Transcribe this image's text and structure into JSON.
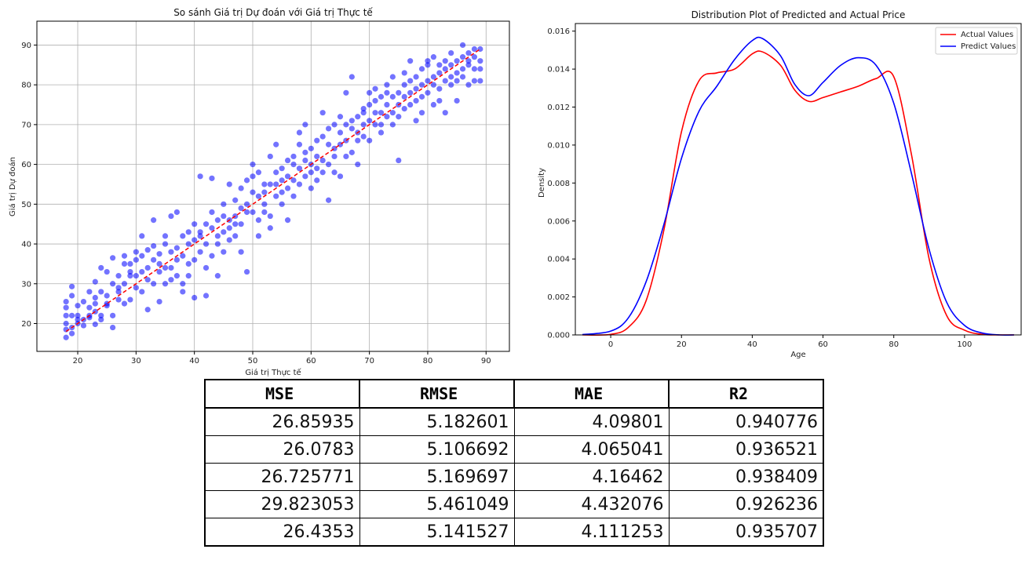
{
  "chart_data": [
    {
      "type": "scatter",
      "title": "So sánh Giá trị Dự đoán với Giá trị Thực tế",
      "xlabel": "Giá trị Thực tế",
      "ylabel": "Giá trị Dự đoán",
      "xlim": [
        13,
        94
      ],
      "ylim": [
        13,
        96
      ],
      "xticks": [
        20,
        30,
        40,
        50,
        60,
        70,
        80,
        90
      ],
      "yticks": [
        20,
        30,
        40,
        50,
        60,
        70,
        80,
        90
      ],
      "grid": true,
      "point_color": "#0000ff",
      "reference_line": {
        "color": "#ff0000",
        "style": "dashed",
        "from": [
          18,
          18
        ],
        "to": [
          89,
          89
        ]
      },
      "points": [
        [
          18,
          25.5
        ],
        [
          18,
          24
        ],
        [
          18,
          22
        ],
        [
          18,
          20
        ],
        [
          18,
          18.5
        ],
        [
          18,
          16.5
        ],
        [
          19,
          29.3
        ],
        [
          19,
          27
        ],
        [
          19,
          19
        ],
        [
          19,
          17.5
        ],
        [
          19,
          22
        ],
        [
          20,
          20
        ],
        [
          20,
          22
        ],
        [
          20,
          24.5
        ],
        [
          20,
          21
        ],
        [
          21,
          19.5
        ],
        [
          21,
          21
        ],
        [
          21,
          25.5
        ],
        [
          22,
          22
        ],
        [
          22,
          28
        ],
        [
          22,
          21.5
        ],
        [
          22,
          24
        ],
        [
          23,
          23
        ],
        [
          23,
          25
        ],
        [
          23,
          30.5
        ],
        [
          23,
          19.8
        ],
        [
          23,
          26.5
        ],
        [
          24,
          34
        ],
        [
          24,
          22
        ],
        [
          24,
          21
        ],
        [
          24,
          28
        ],
        [
          25,
          24.5
        ],
        [
          25,
          33
        ],
        [
          25,
          27
        ],
        [
          25,
          25
        ],
        [
          26,
          30
        ],
        [
          26,
          36.5
        ],
        [
          26,
          22
        ],
        [
          26,
          19
        ],
        [
          27,
          26
        ],
        [
          27,
          28
        ],
        [
          27,
          32
        ],
        [
          27,
          29
        ],
        [
          28,
          37
        ],
        [
          28,
          35
        ],
        [
          28,
          30
        ],
        [
          28,
          25
        ],
        [
          29,
          32
        ],
        [
          29,
          26
        ],
        [
          29,
          33
        ],
        [
          29,
          35
        ],
        [
          30,
          38
        ],
        [
          30,
          29
        ],
        [
          30,
          36
        ],
        [
          30,
          32
        ],
        [
          31,
          42
        ],
        [
          31,
          33
        ],
        [
          31,
          28
        ],
        [
          31,
          37
        ],
        [
          32,
          34
        ],
        [
          32,
          38.5
        ],
        [
          32,
          23.5
        ],
        [
          32,
          31
        ],
        [
          33,
          39.5
        ],
        [
          33,
          30
        ],
        [
          33,
          36
        ],
        [
          33,
          46
        ],
        [
          34,
          37.5
        ],
        [
          34,
          35
        ],
        [
          34,
          33
        ],
        [
          34,
          25.5
        ],
        [
          35,
          42
        ],
        [
          35,
          34
        ],
        [
          35,
          30
        ],
        [
          35,
          40
        ],
        [
          36,
          47
        ],
        [
          36,
          34
        ],
        [
          36,
          38
        ],
        [
          36,
          31
        ],
        [
          37,
          39
        ],
        [
          37,
          36
        ],
        [
          37,
          32
        ],
        [
          37,
          48
        ],
        [
          38,
          42
        ],
        [
          38,
          30
        ],
        [
          38,
          37
        ],
        [
          38,
          28
        ],
        [
          39,
          43
        ],
        [
          39,
          35
        ],
        [
          39,
          40
        ],
        [
          39,
          32
        ],
        [
          40,
          41
        ],
        [
          40,
          36
        ],
        [
          40,
          26.5
        ],
        [
          40,
          45
        ],
        [
          41,
          43
        ],
        [
          41,
          38
        ],
        [
          41,
          57
        ],
        [
          41,
          42
        ],
        [
          42,
          45
        ],
        [
          42,
          34
        ],
        [
          42,
          27
        ],
        [
          42,
          40
        ],
        [
          43,
          44
        ],
        [
          43,
          48
        ],
        [
          43,
          56.5
        ],
        [
          43,
          37
        ],
        [
          44,
          42
        ],
        [
          44,
          46
        ],
        [
          44,
          40
        ],
        [
          44,
          32
        ],
        [
          45,
          50
        ],
        [
          45,
          43
        ],
        [
          45,
          38
        ],
        [
          45,
          47
        ],
        [
          46,
          44
        ],
        [
          46,
          46
        ],
        [
          46,
          41
        ],
        [
          46,
          55
        ],
        [
          47,
          47
        ],
        [
          47,
          45
        ],
        [
          47,
          51
        ],
        [
          47,
          42
        ],
        [
          48,
          49
        ],
        [
          48,
          54
        ],
        [
          48,
          38
        ],
        [
          48,
          45
        ],
        [
          49,
          50
        ],
        [
          49,
          56
        ],
        [
          49,
          33
        ],
        [
          49,
          48
        ],
        [
          50,
          48
        ],
        [
          50,
          53
        ],
        [
          50,
          57
        ],
        [
          50,
          60
        ],
        [
          51,
          46
        ],
        [
          51,
          52
        ],
        [
          51,
          58
        ],
        [
          51,
          42
        ],
        [
          52,
          53
        ],
        [
          52,
          50
        ],
        [
          52,
          55
        ],
        [
          52,
          48
        ],
        [
          53,
          47
        ],
        [
          53,
          55
        ],
        [
          53,
          62
        ],
        [
          53,
          44
        ],
        [
          54,
          58
        ],
        [
          54,
          52
        ],
        [
          54,
          55
        ],
        [
          54,
          65
        ],
        [
          55,
          59
        ],
        [
          55,
          53
        ],
        [
          55,
          50
        ],
        [
          55,
          56
        ],
        [
          56,
          57
        ],
        [
          56,
          54
        ],
        [
          56,
          61
        ],
        [
          56,
          46
        ],
        [
          57,
          60
        ],
        [
          57,
          62
        ],
        [
          57,
          52
        ],
        [
          57,
          56
        ],
        [
          58,
          59
        ],
        [
          58,
          65
        ],
        [
          58,
          55
        ],
        [
          58,
          68
        ],
        [
          59,
          61
        ],
        [
          59,
          57
        ],
        [
          59,
          63
        ],
        [
          59,
          70
        ],
        [
          60,
          60
        ],
        [
          60,
          54
        ],
        [
          60,
          64
        ],
        [
          60,
          58
        ],
        [
          61,
          62
        ],
        [
          61,
          66
        ],
        [
          61,
          59
        ],
        [
          61,
          56
        ],
        [
          62,
          61
        ],
        [
          62,
          67
        ],
        [
          62,
          58
        ],
        [
          62,
          73
        ],
        [
          63,
          65
        ],
        [
          63,
          69
        ],
        [
          63,
          51
        ],
        [
          63,
          60
        ],
        [
          64,
          64
        ],
        [
          64,
          70
        ],
        [
          64,
          62
        ],
        [
          64,
          58
        ],
        [
          65,
          65
        ],
        [
          65,
          68
        ],
        [
          65,
          72
        ],
        [
          65,
          57
        ],
        [
          66,
          66
        ],
        [
          66,
          78
        ],
        [
          66,
          62
        ],
        [
          66,
          70
        ],
        [
          67,
          69
        ],
        [
          67,
          71
        ],
        [
          67,
          63
        ],
        [
          67,
          82
        ],
        [
          68,
          68
        ],
        [
          68,
          72
        ],
        [
          68,
          60
        ],
        [
          68,
          66
        ],
        [
          69,
          70
        ],
        [
          69,
          74
        ],
        [
          69,
          67
        ],
        [
          69,
          73
        ],
        [
          70,
          71
        ],
        [
          70,
          78
        ],
        [
          70,
          66
        ],
        [
          70,
          75
        ],
        [
          71,
          73
        ],
        [
          71,
          76
        ],
        [
          71,
          70
        ],
        [
          71,
          79
        ],
        [
          72,
          73
        ],
        [
          72,
          70
        ],
        [
          72,
          77
        ],
        [
          72,
          68
        ],
        [
          73,
          75
        ],
        [
          73,
          72
        ],
        [
          73,
          80
        ],
        [
          73,
          78
        ],
        [
          74,
          73
        ],
        [
          74,
          77
        ],
        [
          74,
          70
        ],
        [
          74,
          82
        ],
        [
          75,
          75
        ],
        [
          75,
          61
        ],
        [
          75,
          78
        ],
        [
          75,
          72
        ],
        [
          76,
          77
        ],
        [
          76,
          80
        ],
        [
          76,
          83
        ],
        [
          76,
          74
        ],
        [
          77,
          78
        ],
        [
          77,
          75
        ],
        [
          77,
          81
        ],
        [
          77,
          86
        ],
        [
          78,
          79
        ],
        [
          78,
          82
        ],
        [
          78,
          71
        ],
        [
          78,
          76
        ],
        [
          79,
          80
        ],
        [
          79,
          84
        ],
        [
          79,
          77
        ],
        [
          79,
          73
        ],
        [
          80,
          81
        ],
        [
          80,
          78
        ],
        [
          80,
          86
        ],
        [
          80,
          85
        ],
        [
          81,
          82
        ],
        [
          81,
          80
        ],
        [
          81,
          75
        ],
        [
          81,
          87
        ],
        [
          82,
          83
        ],
        [
          82,
          79
        ],
        [
          82,
          76
        ],
        [
          82,
          85
        ],
        [
          83,
          84
        ],
        [
          83,
          81
        ],
        [
          83,
          73
        ],
        [
          83,
          86
        ],
        [
          84,
          85
        ],
        [
          84,
          82
        ],
        [
          84,
          88
        ],
        [
          84,
          80
        ],
        [
          85,
          86
        ],
        [
          85,
          83
        ],
        [
          85,
          81
        ],
        [
          85,
          76
        ],
        [
          86,
          87
        ],
        [
          86,
          90
        ],
        [
          86,
          84
        ],
        [
          86,
          82
        ],
        [
          87,
          88
        ],
        [
          87,
          85
        ],
        [
          87,
          80
        ],
        [
          87,
          86
        ],
        [
          88,
          87
        ],
        [
          88,
          89
        ],
        [
          88,
          84
        ],
        [
          88,
          81
        ],
        [
          89,
          89
        ],
        [
          89,
          86
        ],
        [
          89,
          84
        ],
        [
          89,
          81
        ]
      ]
    },
    {
      "type": "line",
      "title": "Distribution Plot of Predicted and Actual Price",
      "xlabel": "Age",
      "ylabel": "Density",
      "xlim": [
        -10,
        116
      ],
      "ylim": [
        0,
        0.0164
      ],
      "xticks": [
        0,
        20,
        40,
        60,
        80,
        100
      ],
      "yticks": [
        0.0,
        0.002,
        0.004,
        0.006,
        0.008,
        0.01,
        0.012,
        0.014,
        0.016
      ],
      "ytick_labels": [
        "0.000",
        "0.002",
        "0.004",
        "0.006",
        "0.008",
        "0.010",
        "0.012",
        "0.014",
        "0.016"
      ],
      "legend_position": "top-right",
      "series": [
        {
          "name": "Actual Values",
          "color": "#ff0000",
          "x": [
            -8,
            0,
            5,
            10,
            15,
            20,
            25,
            30,
            35,
            40,
            43,
            48,
            52,
            56,
            60,
            65,
            70,
            75,
            80,
            85,
            90,
            95,
            100,
            105,
            110,
            114
          ],
          "y": [
            0.0,
            3e-05,
            0.0004,
            0.0018,
            0.0055,
            0.0107,
            0.0134,
            0.0138,
            0.014,
            0.0148,
            0.0149,
            0.0142,
            0.0129,
            0.0123,
            0.0125,
            0.0128,
            0.0131,
            0.0135,
            0.0136,
            0.0095,
            0.004,
            0.001,
            0.00025,
            3e-05,
            0.0,
            0.0
          ]
        },
        {
          "name": "Predict Values",
          "color": "#0000ff",
          "x": [
            -8,
            0,
            5,
            10,
            15,
            20,
            25,
            30,
            35,
            40,
            43,
            48,
            52,
            56,
            60,
            65,
            70,
            75,
            80,
            85,
            90,
            95,
            100,
            105,
            110,
            114
          ],
          "y": [
            2e-05,
            0.0002,
            0.0009,
            0.0028,
            0.0058,
            0.0093,
            0.0118,
            0.0131,
            0.0145,
            0.0155,
            0.0156,
            0.0147,
            0.0132,
            0.0126,
            0.0133,
            0.0142,
            0.0146,
            0.0142,
            0.0122,
            0.0085,
            0.0045,
            0.0017,
            0.0005,
            0.0001,
            0.0,
            0.0
          ]
        }
      ]
    },
    {
      "type": "table",
      "columns": [
        "MSE",
        "RMSE",
        "MAE",
        "R2"
      ],
      "rows": [
        [
          "26.85935",
          "5.182601",
          "4.09801",
          "0.940776"
        ],
        [
          "26.0783",
          "5.106692",
          "4.065041",
          "0.936521"
        ],
        [
          "26.725771",
          "5.169697",
          "4.16462",
          "0.938409"
        ],
        [
          "29.823053",
          "5.461049",
          "4.432076",
          "0.926236"
        ],
        [
          "26.4353",
          "5.141527",
          "4.111253",
          "0.935707"
        ]
      ]
    }
  ]
}
